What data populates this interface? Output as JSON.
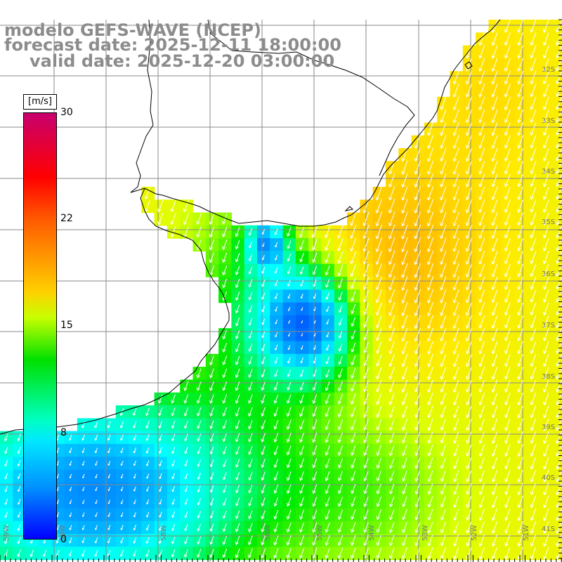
{
  "header": {
    "model": "modelo GEFS-WAVE (NCEP)",
    "forecast": "forecast date: 2025-12-11 18:00:00",
    "valid": "valid date: 2025-12-20 03:00:00"
  },
  "colorbar": {
    "unit": "[m/s]",
    "ticks": [
      "30",
      "22",
      "15",
      "8",
      "0"
    ],
    "range": [
      0,
      30
    ]
  },
  "map": {
    "lat_labels": [
      "32S",
      "33S",
      "34S",
      "35S",
      "36S",
      "37S",
      "38S",
      "39S",
      "40S",
      "41S"
    ],
    "lon_labels_bottom": [
      "59W",
      "59W",
      "58W",
      "56W",
      "55W",
      "54W",
      "53W",
      "52W",
      "51W"
    ],
    "colors": {
      "title": "#8c8c8c",
      "land": "#ffffff",
      "grid": "#8a8a8a",
      "coast": "#000000",
      "arrow": "#ffffff"
    },
    "wind_direction": "toward south-southwest"
  }
}
